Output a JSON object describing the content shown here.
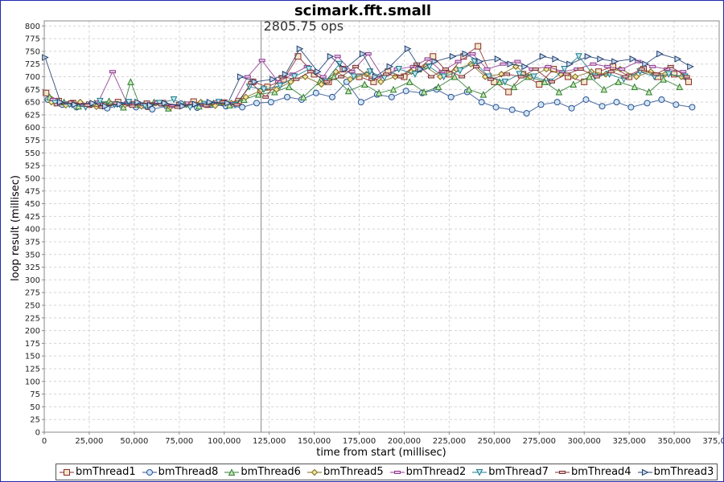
{
  "chart_data": {
    "type": "scatter",
    "title": "scimark.fft.small",
    "xlabel": "time from start (millisec)",
    "ylabel": "loop result (millisec)",
    "xlim": [
      0,
      375000
    ],
    "ylim": [
      0,
      810
    ],
    "x_ticks": [
      0,
      25000,
      50000,
      75000,
      100000,
      125000,
      150000,
      175000,
      200000,
      225000,
      250000,
      275000,
      300000,
      325000,
      350000,
      375000
    ],
    "x_tick_labels": [
      "0",
      "25,000",
      "50,000",
      "75,000",
      "100,000",
      "125,000",
      "150,000",
      "175,000",
      "200,000",
      "225,000",
      "250,000",
      "275,000",
      "300,000",
      "325,000",
      "350,000",
      "375,000"
    ],
    "y_ticks": [
      0,
      25,
      50,
      75,
      100,
      125,
      150,
      175,
      200,
      225,
      250,
      275,
      300,
      325,
      350,
      375,
      400,
      425,
      450,
      475,
      500,
      525,
      550,
      575,
      600,
      625,
      650,
      675,
      700,
      725,
      750,
      775,
      800
    ],
    "grid": true,
    "legend_position": "bottom",
    "annotation": {
      "text": "2805.75 ops",
      "x": 120500
    },
    "series": [
      {
        "name": "bmThread1",
        "marker": "square",
        "color": "#8b2a2a",
        "fill": "#f2e8c8",
        "x": [
          1000,
          8000,
          16000,
          25000,
          33000,
          41000,
          50000,
          58000,
          66000,
          75000,
          83000,
          91000,
          100000,
          108000,
          116000,
          124000,
          133000,
          141000,
          150000,
          158000,
          166000,
          175000,
          183000,
          191000,
          200000,
          208000,
          216000,
          225000,
          233000,
          241000,
          250000,
          258000,
          266000,
          275000,
          283000,
          291000,
          300000,
          308000,
          316000,
          325000,
          333000,
          341000,
          350000,
          358000
        ],
        "y": [
          668,
          652,
          648,
          645,
          643,
          650,
          646,
          641,
          648,
          644,
          651,
          645,
          649,
          652,
          690,
          680,
          695,
          740,
          705,
          690,
          715,
          700,
          690,
          710,
          700,
          715,
          740,
          705,
          740,
          760,
          690,
          670,
          705,
          685,
          715,
          700,
          690,
          710,
          720,
          700,
          715,
          700,
          705,
          690
        ]
      },
      {
        "name": "bmThread8",
        "marker": "circle",
        "color": "#2b4f8f",
        "fill": "#cfe6f5",
        "x": [
          2000,
          10000,
          18000,
          26000,
          35000,
          43000,
          51000,
          60000,
          68000,
          76000,
          85000,
          93000,
          101000,
          110000,
          118000,
          126000,
          135000,
          143000,
          151000,
          160000,
          168000,
          176000,
          185000,
          193000,
          201000,
          210000,
          218000,
          226000,
          235000,
          243000,
          251000,
          260000,
          268000,
          276000,
          285000,
          293000,
          301000,
          310000,
          318000,
          326000,
          335000,
          343000,
          351000,
          360000
        ],
        "y": [
          655,
          645,
          640,
          646,
          638,
          644,
          640,
          636,
          642,
          647,
          639,
          645,
          642,
          640,
          648,
          650,
          660,
          655,
          668,
          660,
          690,
          650,
          665,
          660,
          672,
          668,
          675,
          660,
          670,
          650,
          640,
          635,
          628,
          645,
          650,
          638,
          655,
          642,
          650,
          640,
          648,
          655,
          645,
          640
        ]
      },
      {
        "name": "bmThread6",
        "marker": "triangle-up",
        "color": "#2e7d32",
        "fill": "#c8e6b0",
        "x": [
          3000,
          11000,
          19000,
          28000,
          36000,
          44000,
          48000,
          53000,
          61000,
          69000,
          78000,
          86000,
          94000,
          103000,
          111000,
          119000,
          128000,
          136000,
          144000,
          153000,
          161000,
          169000,
          178000,
          186000,
          194000,
          203000,
          211000,
          219000,
          228000,
          236000,
          244000,
          253000,
          261000,
          269000,
          278000,
          286000,
          294000,
          303000,
          311000,
          319000,
          328000,
          336000,
          344000,
          353000
        ],
        "y": [
          660,
          650,
          642,
          648,
          652,
          640,
          690,
          645,
          650,
          638,
          646,
          642,
          648,
          644,
          655,
          665,
          670,
          680,
          660,
          690,
          700,
          672,
          685,
          668,
          675,
          690,
          670,
          680,
          700,
          675,
          665,
          690,
          680,
          700,
          690,
          670,
          685,
          700,
          675,
          690,
          680,
          670,
          695,
          680
        ]
      },
      {
        "name": "bmThread5",
        "marker": "diamond",
        "color": "#7a6a1a",
        "fill": "#f3e3a0",
        "x": [
          4000,
          12000,
          20000,
          29000,
          37000,
          45000,
          54000,
          62000,
          70000,
          79000,
          87000,
          95000,
          104000,
          112000,
          120000,
          129000,
          137000,
          145000,
          154000,
          162000,
          170000,
          179000,
          187000,
          195000,
          204000,
          212000,
          220000,
          229000,
          237000,
          245000,
          254000,
          262000,
          270000,
          279000,
          287000,
          295000,
          304000,
          312000,
          320000,
          329000,
          337000,
          345000,
          354000
        ],
        "y": [
          650,
          644,
          650,
          641,
          647,
          645,
          642,
          648,
          640,
          645,
          650,
          643,
          648,
          660,
          672,
          675,
          690,
          700,
          685,
          710,
          695,
          705,
          690,
          700,
          710,
          720,
          700,
          715,
          725,
          700,
          705,
          720,
          700,
          715,
          705,
          700,
          710,
          705,
          715,
          700,
          710,
          705,
          700
        ]
      },
      {
        "name": "bmThread2",
        "marker": "line",
        "color": "#8e3a8e",
        "fill": "#e8c8e8",
        "x": [
          5000,
          13000,
          22000,
          30000,
          38000,
          46000,
          55000,
          63000,
          71000,
          80000,
          88000,
          96000,
          105000,
          113000,
          121000,
          130000,
          138000,
          146000,
          155000,
          163000,
          171000,
          180000,
          188000,
          196000,
          205000,
          213000,
          221000,
          230000,
          238000,
          246000,
          255000,
          263000,
          271000,
          280000,
          288000,
          296000,
          305000,
          313000,
          321000,
          330000,
          338000,
          346000,
          355000
        ],
        "y": [
          655,
          648,
          645,
          650,
          710,
          648,
          645,
          650,
          642,
          648,
          645,
          650,
          647,
          700,
          732,
          690,
          705,
          720,
          700,
          740,
          710,
          745,
          700,
          715,
          720,
          735,
          710,
          730,
          745,
          715,
          725,
          730,
          715,
          720,
          710,
          715,
          725,
          720,
          715,
          730,
          720,
          715,
          710
        ]
      },
      {
        "name": "bmThread7",
        "marker": "triangle-down",
        "color": "#1f7a8a",
        "fill": "#bfe7ef",
        "x": [
          6000,
          14000,
          23000,
          31000,
          39000,
          47000,
          56000,
          64000,
          72000,
          81000,
          89000,
          97000,
          106000,
          114000,
          122000,
          131000,
          139000,
          147000,
          156000,
          164000,
          172000,
          181000,
          189000,
          197000,
          206000,
          214000,
          222000,
          231000,
          239000,
          247000,
          256000,
          264000,
          272000,
          281000,
          289000,
          297000,
          306000,
          314000,
          322000,
          331000,
          339000,
          347000,
          356000
        ],
        "y": [
          648,
          645,
          640,
          652,
          645,
          650,
          643,
          648,
          655,
          640,
          646,
          650,
          644,
          680,
          675,
          682,
          700,
          715,
          690,
          725,
          700,
          710,
          698,
          715,
          705,
          720,
          700,
          712,
          730,
          700,
          690,
          705,
          700,
          690,
          715,
          740,
          700,
          705,
          695,
          710,
          700,
          705,
          700
        ]
      },
      {
        "name": "bmThread4",
        "marker": "line",
        "color": "#7a3030",
        "fill": "#e0c0c0",
        "x": [
          7000,
          15000,
          24000,
          32000,
          40000,
          49000,
          57000,
          65000,
          74000,
          82000,
          90000,
          99000,
          107000,
          115000,
          123000,
          132000,
          140000,
          148000,
          157000,
          165000,
          173000,
          182000,
          190000,
          198000,
          207000,
          215000,
          223000,
          232000,
          240000,
          248000,
          257000,
          265000,
          273000,
          282000,
          290000,
          298000,
          307000,
          315000,
          323000,
          332000,
          340000,
          348000,
          357000
        ],
        "y": [
          645,
          650,
          644,
          640,
          648,
          642,
          650,
          645,
          640,
          648,
          643,
          650,
          645,
          688,
          660,
          700,
          695,
          710,
          690,
          700,
          720,
          695,
          705,
          700,
          725,
          700,
          715,
          700,
          720,
          695,
          705,
          700,
          715,
          690,
          705,
          715,
          700,
          710,
          700,
          715,
          705,
          720,
          700
        ]
      },
      {
        "name": "bmThread3",
        "marker": "triangle-right",
        "color": "#1f3f6f",
        "fill": "#c8d6ea",
        "x": [
          500,
          9000,
          17000,
          27000,
          34000,
          42000,
          52000,
          59000,
          67000,
          77000,
          84000,
          92000,
          102000,
          109000,
          117000,
          127000,
          134000,
          142000,
          152000,
          159000,
          167000,
          177000,
          184000,
          192000,
          202000,
          209000,
          217000,
          227000,
          234000,
          242000,
          252000,
          259000,
          267000,
          277000,
          284000,
          292000,
          302000,
          309000,
          317000,
          327000,
          334000,
          342000,
          352000,
          359000
        ],
        "y": [
          738,
          650,
          645,
          648,
          642,
          646,
          650,
          644,
          648,
          642,
          646,
          650,
          648,
          700,
          690,
          695,
          705,
          755,
          710,
          740,
          715,
          745,
          700,
          720,
          755,
          715,
          730,
          740,
          745,
          730,
          735,
          725,
          720,
          740,
          735,
          725,
          740,
          735,
          730,
          735,
          725,
          745,
          735,
          720
        ]
      }
    ]
  }
}
